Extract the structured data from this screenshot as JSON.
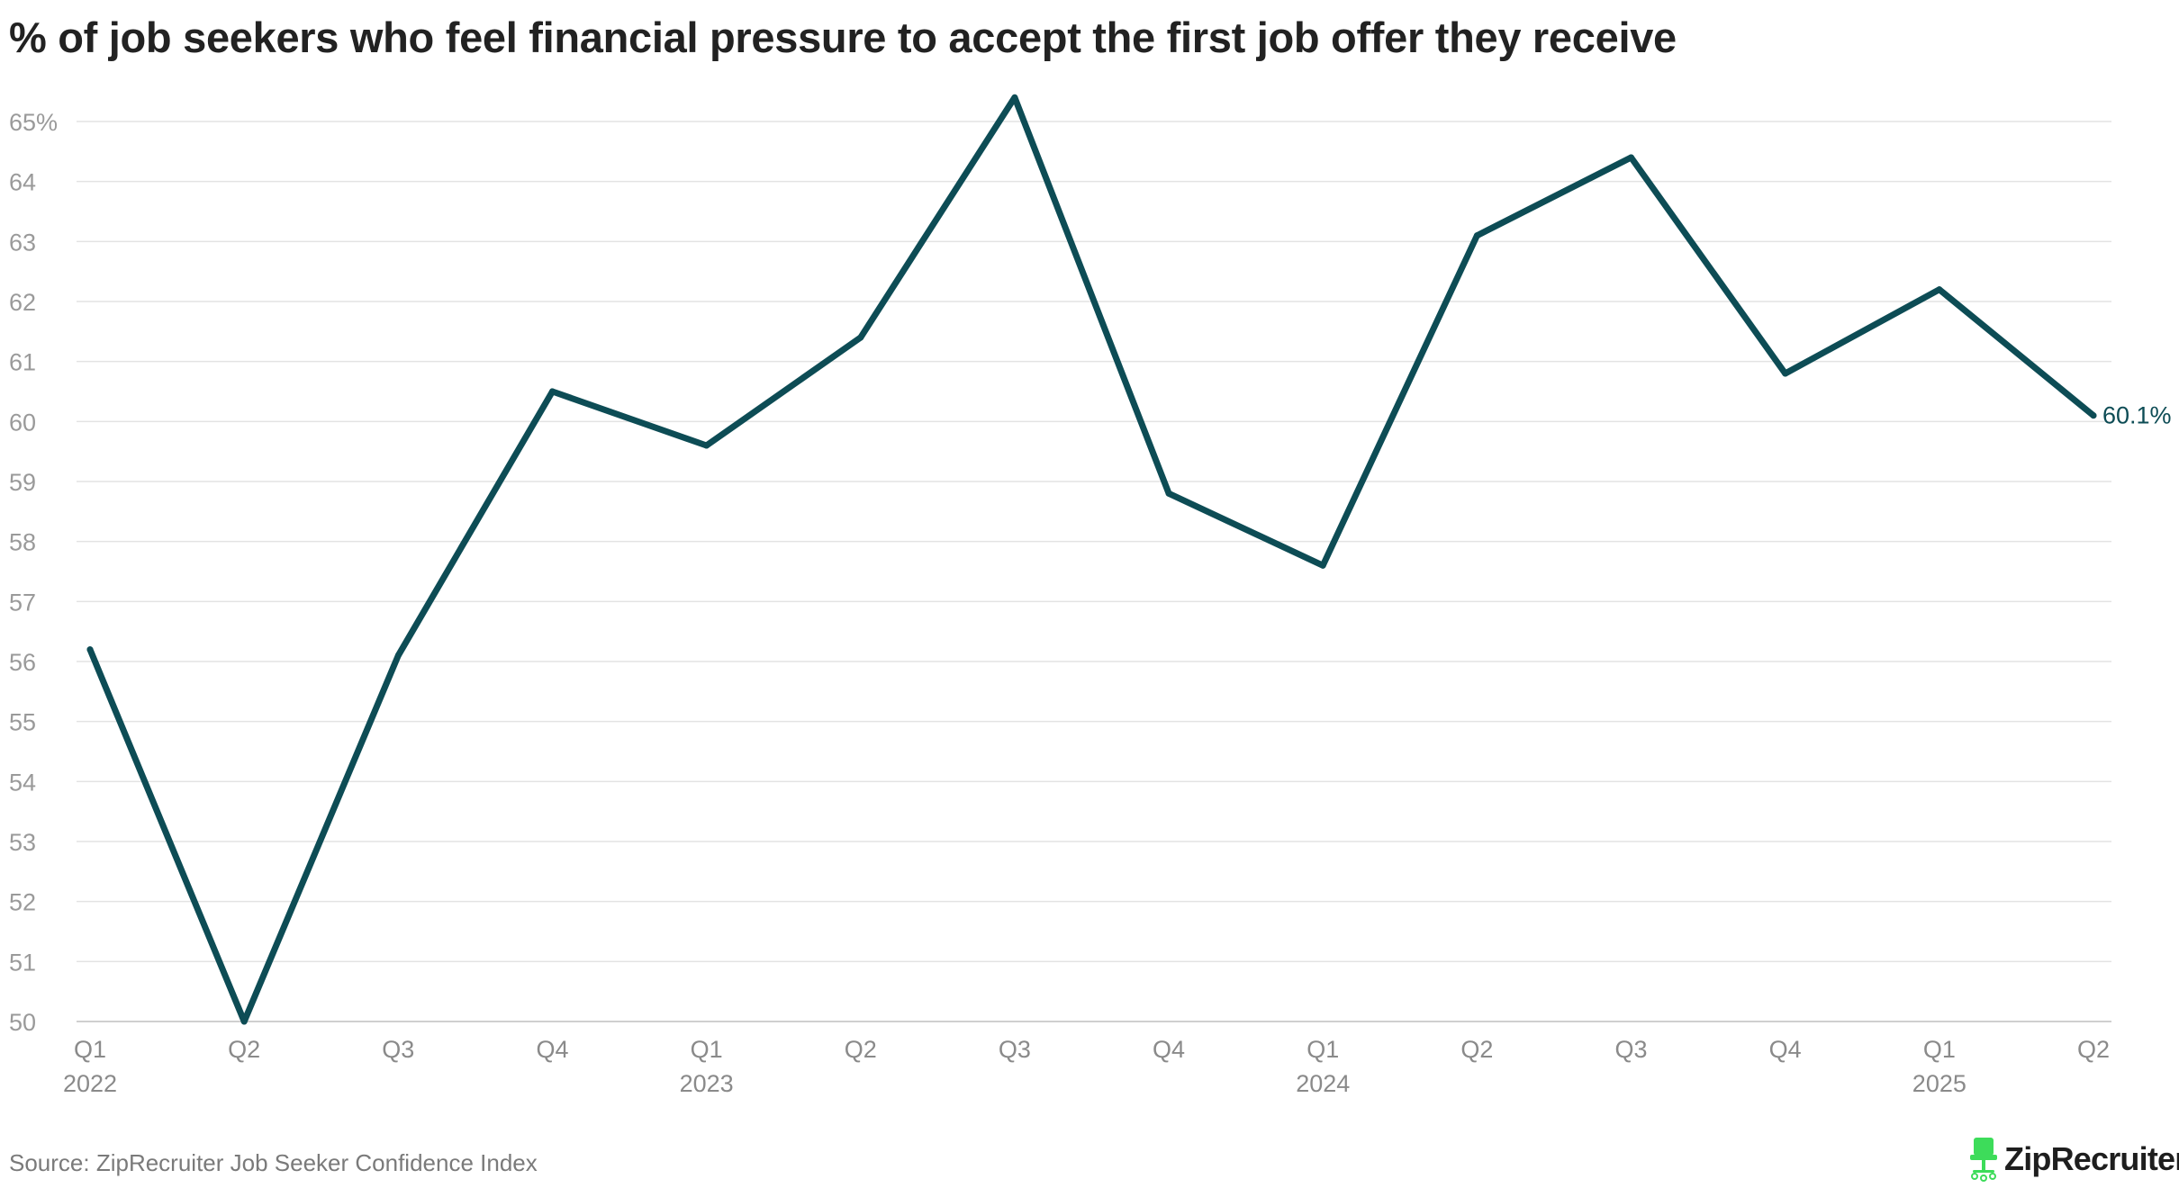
{
  "colors": {
    "line": "#0d4c55",
    "end_label": "#0d4c55",
    "brand_icon": "#3ddc5a"
  },
  "chart_data": {
    "type": "line",
    "title": "% of job seekers who feel financial pressure to accept the first job offer they receive",
    "xlabel": "",
    "ylabel": "",
    "categories": [
      "Q1 2022",
      "Q2 2022",
      "Q3 2022",
      "Q4 2022",
      "Q1 2023",
      "Q2 2023",
      "Q3 2023",
      "Q4 2023",
      "Q1 2024",
      "Q2 2024",
      "Q3 2024",
      "Q4 2024",
      "Q1 2025",
      "Q2 2025"
    ],
    "x_tick_labels": [
      {
        "quarter": "Q1",
        "year": "2022"
      },
      {
        "quarter": "Q2",
        "year": ""
      },
      {
        "quarter": "Q3",
        "year": ""
      },
      {
        "quarter": "Q4",
        "year": ""
      },
      {
        "quarter": "Q1",
        "year": "2023"
      },
      {
        "quarter": "Q2",
        "year": ""
      },
      {
        "quarter": "Q3",
        "year": ""
      },
      {
        "quarter": "Q4",
        "year": ""
      },
      {
        "quarter": "Q1",
        "year": "2024"
      },
      {
        "quarter": "Q2",
        "year": ""
      },
      {
        "quarter": "Q3",
        "year": ""
      },
      {
        "quarter": "Q4",
        "year": ""
      },
      {
        "quarter": "Q1",
        "year": "2025"
      },
      {
        "quarter": "Q2",
        "year": ""
      }
    ],
    "series": [
      {
        "values": [
          56.2,
          50.0,
          56.1,
          60.5,
          59.6,
          61.4,
          65.4,
          58.8,
          57.6,
          63.1,
          64.4,
          60.8,
          62.2,
          60.1
        ]
      }
    ],
    "ylim": [
      50,
      65.4
    ],
    "y_ticks": [
      50,
      51,
      52,
      53,
      54,
      55,
      56,
      57,
      58,
      59,
      60,
      61,
      62,
      63,
      64,
      65
    ],
    "y_tick_labels": [
      "50",
      "51",
      "52",
      "53",
      "54",
      "55",
      "56",
      "57",
      "58",
      "59",
      "60",
      "61",
      "62",
      "63",
      "64",
      "65%"
    ],
    "grid": true,
    "end_label": "60.1%",
    "legend": "none"
  },
  "footer": {
    "source": "Source: ZipRecruiter Job Seeker Confidence Index",
    "brand": "ZipRecruiter",
    "brand_mark": "®",
    "brand_icon": "chair-icon"
  }
}
